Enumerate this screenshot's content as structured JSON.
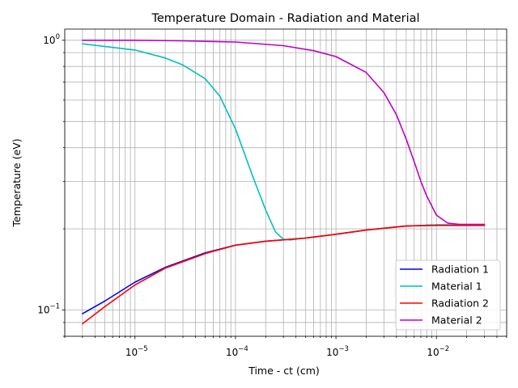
{
  "chart_data": {
    "type": "line",
    "title": "Temperature Domain - Radiation and Material",
    "xlabel": "Time - ct (cm)",
    "ylabel": "Temperature (eV)",
    "xscale": "log",
    "yscale": "log",
    "xlim": [
      2e-06,
      0.05
    ],
    "ylim": [
      0.08,
      1.1
    ],
    "grid": "both (major and minor)",
    "legend_position": "lower right",
    "x_major_ticks": [
      {
        "value": 1e-05,
        "base": "10",
        "exp": "−5"
      },
      {
        "value": 0.0001,
        "base": "10",
        "exp": "−4"
      },
      {
        "value": 0.001,
        "base": "10",
        "exp": "−3"
      },
      {
        "value": 0.01,
        "base": "10",
        "exp": "−2"
      }
    ],
    "y_major_ticks": [
      {
        "value": 0.1,
        "base": "10",
        "exp": "−1"
      },
      {
        "value": 1.0,
        "base": "10",
        "exp": "0"
      }
    ],
    "series": [
      {
        "name": "Radiation 1",
        "color": "#0000ff",
        "x": [
          3e-06,
          5e-06,
          1e-05,
          2e-05,
          5e-05,
          0.0001,
          0.0002,
          0.0005,
          0.001,
          0.002,
          0.005,
          0.01,
          0.03
        ],
        "y": [
          0.097,
          0.108,
          0.127,
          0.144,
          0.163,
          0.174,
          0.18,
          0.185,
          0.191,
          0.198,
          0.205,
          0.207,
          0.207
        ]
      },
      {
        "name": "Material 1",
        "color": "#00bfbf",
        "x": [
          3e-06,
          1e-05,
          2e-05,
          3e-05,
          5e-05,
          7e-05,
          0.0001,
          0.00015,
          0.0002,
          0.00025,
          0.0003,
          0.00035,
          0.0005,
          0.001,
          0.002,
          0.005,
          0.01,
          0.03
        ],
        "y": [
          0.97,
          0.92,
          0.86,
          0.81,
          0.72,
          0.62,
          0.47,
          0.31,
          0.235,
          0.195,
          0.183,
          0.182,
          0.185,
          0.191,
          0.198,
          0.205,
          0.207,
          0.207
        ]
      },
      {
        "name": "Radiation 2",
        "color": "#ff0000",
        "x": [
          3e-06,
          5e-06,
          1e-05,
          2e-05,
          5e-05,
          0.0001,
          0.0002,
          0.0005,
          0.001,
          0.002,
          0.005,
          0.01,
          0.03
        ],
        "y": [
          0.089,
          0.103,
          0.124,
          0.143,
          0.162,
          0.174,
          0.18,
          0.185,
          0.191,
          0.198,
          0.205,
          0.206,
          0.206
        ]
      },
      {
        "name": "Material 2",
        "color": "#bf00bf",
        "x": [
          3e-06,
          1e-05,
          3e-05,
          0.0001,
          0.0003,
          0.0006,
          0.001,
          0.002,
          0.003,
          0.004,
          0.005,
          0.006,
          0.007,
          0.008,
          0.01,
          0.013,
          0.017,
          0.02,
          0.03
        ],
        "y": [
          1.0,
          1.0,
          0.995,
          0.985,
          0.955,
          0.915,
          0.87,
          0.76,
          0.64,
          0.53,
          0.43,
          0.355,
          0.3,
          0.265,
          0.225,
          0.21,
          0.208,
          0.208,
          0.208
        ]
      }
    ]
  }
}
